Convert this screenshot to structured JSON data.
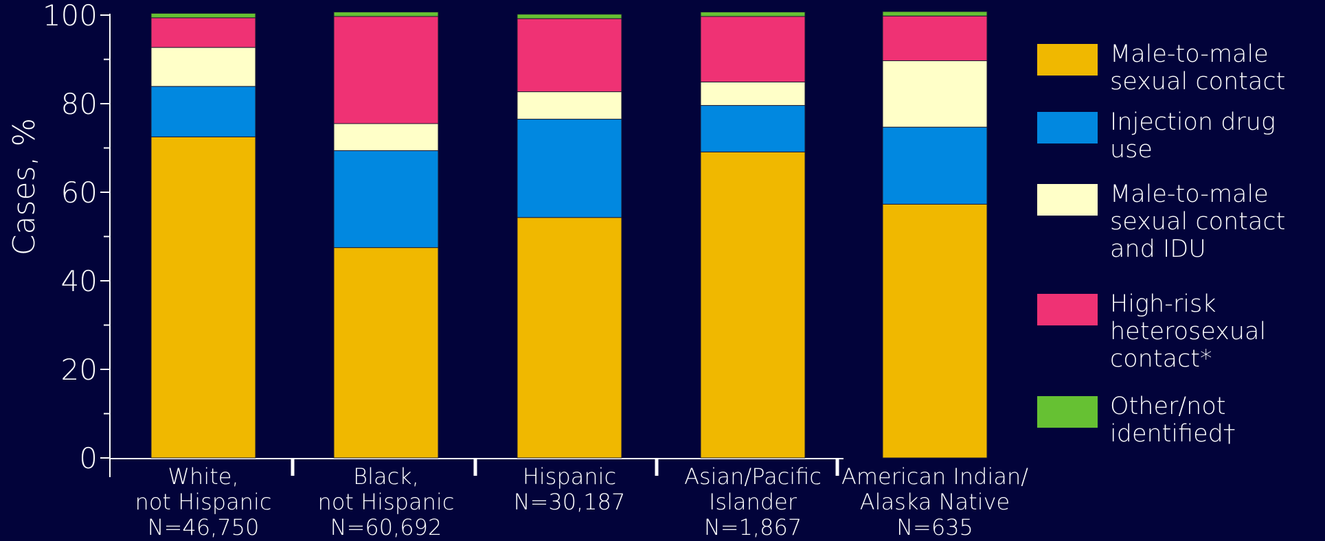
{
  "chart_data": {
    "type": "bar",
    "stacked": true,
    "ylabel": "Cases, %",
    "ylim": [
      0,
      100
    ],
    "yticks": [
      "0",
      "20",
      "40",
      "60",
      "80",
      "100"
    ],
    "categories": [
      {
        "label": "White,\nnot Hispanic\nN=46,750"
      },
      {
        "label": "Black,\nnot Hispanic\nN=60,692"
      },
      {
        "label": "Hispanic\n\nN=30,187"
      },
      {
        "label": "Asian/Pacific\nIslander\nN=1,867"
      },
      {
        "label": "American Indian/\nAlaska Native\nN=635"
      }
    ],
    "series": [
      {
        "name": "Male-to-male\nsexual contact",
        "color": "#f0b800",
        "values": [
          72.5,
          47.5,
          54.3,
          69.1,
          57.3
        ]
      },
      {
        "name": "Injection drug use",
        "color": "#0188e0",
        "values": [
          11.4,
          21.9,
          22.2,
          10.5,
          17.4
        ]
      },
      {
        "name": "Male-to-male\nsexual contact\nand IDU",
        "color": "#ffffc8",
        "values": [
          8.8,
          6.1,
          6.2,
          5.3,
          15.0
        ]
      },
      {
        "name": "High-risk\nheterosexual\ncontact*",
        "color": "#ef3274",
        "values": [
          6.7,
          24.2,
          16.5,
          14.8,
          10.1
        ]
      },
      {
        "name": "Other/not\nidentified†",
        "color": "#66c133",
        "values": [
          1.0,
          1.0,
          1.0,
          1.0,
          1.0
        ]
      }
    ],
    "grid": false,
    "legend_position": "right"
  }
}
